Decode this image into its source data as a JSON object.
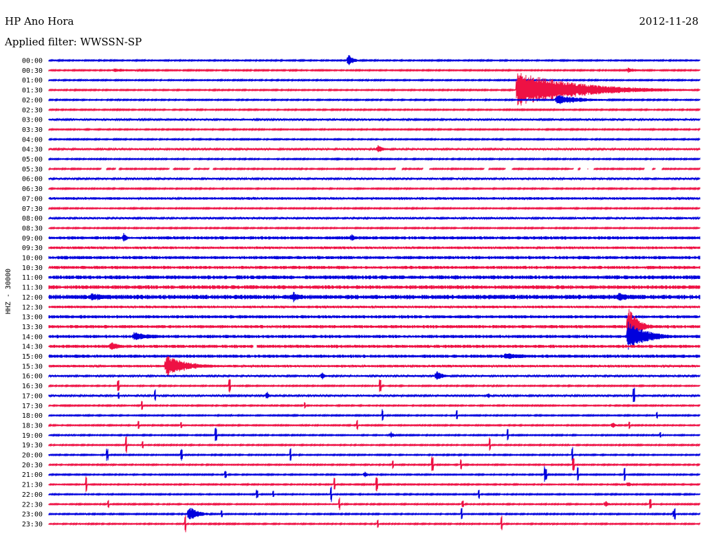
{
  "header": {
    "station": "HP Ano Hora",
    "date": "2012-11-28",
    "filter_label": "Applied filter: WWSSN-SP"
  },
  "chart_data": {
    "type": "line",
    "title": "HP Ano Hora",
    "subtitle": "Applied filter: WWSSN-SP",
    "date": "2012-11-28",
    "ylabel": "HHZ - 30000",
    "row_labels": [
      "00:00",
      "00:30",
      "01:00",
      "01:30",
      "02:00",
      "02:30",
      "03:00",
      "03:30",
      "04:00",
      "04:30",
      "05:00",
      "05:30",
      "06:00",
      "06:30",
      "07:00",
      "07:30",
      "08:00",
      "08:30",
      "09:00",
      "09:30",
      "10:00",
      "10:30",
      "11:00",
      "11:30",
      "12:00",
      "12:30",
      "13:00",
      "13:30",
      "14:00",
      "14:30",
      "15:00",
      "15:30",
      "16:00",
      "16:30",
      "17:00",
      "17:30",
      "18:00",
      "18:30",
      "19:00",
      "19:30",
      "20:00",
      "20:30",
      "21:00",
      "21:30",
      "22:00",
      "22:30",
      "23:00",
      "23:30"
    ],
    "series_colors": [
      "#0000dd",
      "#ee1144"
    ],
    "noise_levels": [
      1,
      1,
      1,
      1,
      1,
      1,
      1.5,
      1,
      1,
      1.5,
      1,
      1,
      1.5,
      1,
      2,
      1,
      1.5,
      1,
      2.5,
      2,
      2.5,
      2.5,
      3,
      3,
      3.5,
      2,
      2.5,
      2.5,
      2.5,
      2.5,
      2.5,
      2,
      1.5,
      1,
      1.5,
      1,
      1,
      1,
      1,
      1,
      1,
      1,
      1,
      1,
      1,
      1,
      1,
      1
    ],
    "events": [
      {
        "row": 0,
        "pos": 0.46,
        "amp": 10,
        "dur": 0.008
      },
      {
        "row": 1,
        "pos": 0.1,
        "amp": 3,
        "dur": 0.04
      },
      {
        "row": 1,
        "pos": 0.89,
        "amp": 4,
        "dur": 0.02
      },
      {
        "row": 3,
        "pos": 0.72,
        "amp": 28,
        "dur": 0.09
      },
      {
        "row": 4,
        "pos": 0.78,
        "amp": 8,
        "dur": 0.04
      },
      {
        "row": 9,
        "pos": 0.505,
        "amp": 7,
        "dur": 0.008
      },
      {
        "row": 18,
        "pos": 0.115,
        "amp": 9,
        "dur": 0.005
      },
      {
        "row": 18,
        "pos": 0.465,
        "amp": 7,
        "dur": 0.005
      },
      {
        "row": 24,
        "pos": 0.065,
        "amp": 6,
        "dur": 0.04
      },
      {
        "row": 24,
        "pos": 0.375,
        "amp": 9,
        "dur": 0.01
      },
      {
        "row": 24,
        "pos": 0.875,
        "amp": 7,
        "dur": 0.02
      },
      {
        "row": 27,
        "pos": 0.89,
        "amp": 30,
        "dur": 0.015
      },
      {
        "row": 28,
        "pos": 0.13,
        "amp": 7,
        "dur": 0.03
      },
      {
        "row": 28,
        "pos": 0.89,
        "amp": 22,
        "dur": 0.03
      },
      {
        "row": 29,
        "pos": 0.095,
        "amp": 7,
        "dur": 0.015
      },
      {
        "row": 30,
        "pos": 0.7,
        "amp": 5,
        "dur": 0.05
      },
      {
        "row": 31,
        "pos": 0.18,
        "amp": 16,
        "dur": 0.035
      },
      {
        "row": 32,
        "pos": 0.42,
        "amp": 6,
        "dur": 0.005
      },
      {
        "row": 32,
        "pos": 0.595,
        "amp": 9,
        "dur": 0.01
      },
      {
        "row": 34,
        "pos": 0.335,
        "amp": 8,
        "dur": 0.003
      },
      {
        "row": 34,
        "pos": 0.675,
        "amp": 6,
        "dur": 0.003
      },
      {
        "row": 37,
        "pos": 0.865,
        "amp": 6,
        "dur": 0.005
      },
      {
        "row": 38,
        "pos": 0.525,
        "amp": 6,
        "dur": 0.005
      },
      {
        "row": 42,
        "pos": 0.485,
        "amp": 5,
        "dur": 0.005
      },
      {
        "row": 43,
        "pos": 0.89,
        "amp": 5,
        "dur": 0.005
      },
      {
        "row": 45,
        "pos": 0.855,
        "amp": 6,
        "dur": 0.005
      },
      {
        "row": 46,
        "pos": 0.215,
        "amp": 12,
        "dur": 0.015
      }
    ],
    "spike_density": [
      0,
      0,
      0,
      0,
      0,
      0,
      0,
      0,
      0,
      0,
      0,
      0,
      0,
      0,
      0,
      0,
      0,
      0,
      0,
      0,
      0,
      0,
      0,
      0,
      0,
      0,
      0,
      0,
      0,
      0,
      0,
      0,
      0,
      3,
      3,
      2,
      3,
      4,
      3,
      3,
      4,
      4,
      5,
      3,
      5,
      4,
      4,
      3
    ],
    "gaps": [
      {
        "row": 11,
        "count": 14
      },
      {
        "row": 29,
        "count": 1
      }
    ]
  }
}
